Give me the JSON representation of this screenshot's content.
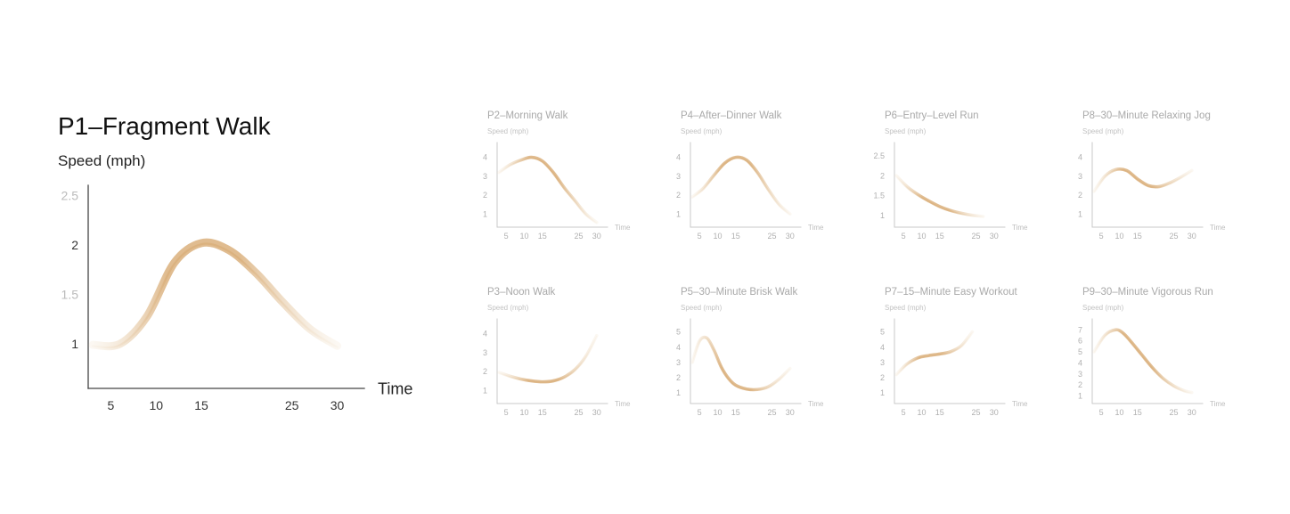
{
  "colors": {
    "curve_light": "#f3e6d3",
    "curve_dark": "#d8ab74"
  },
  "chart_data": [
    {
      "id": "p1",
      "type": "line",
      "title": "P1–Fragment Walk",
      "ylabel": "Speed (mph)",
      "xlabel": "Time",
      "xticks": [
        5,
        10,
        15,
        25,
        30
      ],
      "yticks": [
        1,
        1.5,
        2,
        2.5
      ],
      "xlim": [
        2.5,
        33
      ],
      "ylim": [
        0.55,
        2.55
      ],
      "series": [
        {
          "x": [
            3,
            6,
            9,
            12,
            15,
            18,
            21,
            24,
            27,
            30
          ],
          "y": [
            0.99,
            1.0,
            1.28,
            1.82,
            2.02,
            1.95,
            1.72,
            1.42,
            1.15,
            0.98
          ]
        }
      ]
    },
    {
      "id": "p2",
      "type": "line",
      "title": "P2–Morning Walk",
      "ylabel": "Speed (mph)",
      "xlabel": "Time",
      "xticks": [
        5,
        10,
        15,
        25,
        30
      ],
      "yticks": [
        1,
        2,
        3,
        4
      ],
      "xlim": [
        2.5,
        33
      ],
      "ylim": [
        0.3,
        4.5
      ],
      "series": [
        {
          "x": [
            3,
            6,
            9,
            12,
            15,
            18,
            21,
            24,
            27,
            30
          ],
          "y": [
            3.2,
            3.6,
            3.85,
            4.0,
            3.8,
            3.2,
            2.4,
            1.7,
            1.0,
            0.55
          ]
        }
      ]
    },
    {
      "id": "p4",
      "type": "line",
      "title": "P4–After–Dinner Walk",
      "ylabel": "Speed (mph)",
      "xlabel": "Time",
      "xticks": [
        5,
        10,
        15,
        25,
        30
      ],
      "yticks": [
        1,
        2,
        3,
        4
      ],
      "xlim": [
        2.5,
        33
      ],
      "ylim": [
        0.3,
        4.5
      ],
      "series": [
        {
          "x": [
            3,
            6,
            9,
            12,
            15,
            18,
            21,
            24,
            27,
            30
          ],
          "y": [
            1.9,
            2.35,
            3.05,
            3.7,
            4.0,
            3.85,
            3.2,
            2.3,
            1.5,
            1.0
          ]
        }
      ]
    },
    {
      "id": "p6",
      "type": "line",
      "title": "P6–Entry–Level Run",
      "ylabel": "Speed (mph)",
      "xlabel": "Time",
      "xticks": [
        5,
        10,
        15,
        25,
        30
      ],
      "yticks": [
        1,
        1.5,
        2,
        2.5
      ],
      "xlim": [
        2.5,
        33
      ],
      "ylim": [
        0.7,
        2.7
      ],
      "series": [
        {
          "x": [
            3,
            6,
            9,
            12,
            15,
            18,
            21,
            24,
            27
          ],
          "y": [
            2.0,
            1.72,
            1.52,
            1.36,
            1.22,
            1.12,
            1.05,
            1.0,
            0.97
          ]
        }
      ]
    },
    {
      "id": "p8",
      "type": "line",
      "title": "P8–30–Minute Relaxing Jog",
      "ylabel": "Speed (mph)",
      "xlabel": "Time",
      "xticks": [
        5,
        10,
        15,
        25,
        30
      ],
      "yticks": [
        1,
        2,
        3,
        4
      ],
      "xlim": [
        2.5,
        33
      ],
      "ylim": [
        0.3,
        4.5
      ],
      "series": [
        {
          "x": [
            3,
            6,
            9,
            12,
            15,
            18,
            21,
            24,
            27,
            30
          ],
          "y": [
            2.2,
            3.0,
            3.35,
            3.3,
            2.85,
            2.5,
            2.45,
            2.65,
            2.95,
            3.3
          ]
        }
      ]
    },
    {
      "id": "p3",
      "type": "line",
      "title": "P3–Noon Walk",
      "ylabel": "Speed (mph)",
      "xlabel": "Time",
      "xticks": [
        5,
        10,
        15,
        25,
        30
      ],
      "yticks": [
        1,
        2,
        3,
        4
      ],
      "xlim": [
        2.5,
        33
      ],
      "ylim": [
        0.3,
        4.5
      ],
      "series": [
        {
          "x": [
            3,
            6,
            9,
            12,
            15,
            18,
            21,
            24,
            27,
            30
          ],
          "y": [
            1.95,
            1.75,
            1.6,
            1.5,
            1.45,
            1.5,
            1.7,
            2.1,
            2.8,
            3.9
          ]
        }
      ]
    },
    {
      "id": "p5",
      "type": "line",
      "title": "P5–30–Minute Brisk Walk",
      "ylabel": "Speed (mph)",
      "xlabel": "Time",
      "xticks": [
        5,
        10,
        15,
        25,
        30
      ],
      "yticks": [
        1,
        2,
        3,
        4,
        5
      ],
      "xlim": [
        2.5,
        33
      ],
      "ylim": [
        0.3,
        5.5
      ],
      "series": [
        {
          "x": [
            3,
            5,
            7,
            9,
            11,
            13,
            15,
            18,
            21,
            24,
            27,
            30
          ],
          "y": [
            3.0,
            4.4,
            4.6,
            3.8,
            2.7,
            1.95,
            1.5,
            1.25,
            1.22,
            1.4,
            1.9,
            2.6
          ]
        }
      ]
    },
    {
      "id": "p7",
      "type": "line",
      "title": "P7–15–Minute Easy Workout",
      "ylabel": "Speed (mph)",
      "xlabel": "Time",
      "xticks": [
        5,
        10,
        15,
        25,
        30
      ],
      "yticks": [
        1,
        2,
        3,
        4,
        5
      ],
      "xlim": [
        2.5,
        33
      ],
      "ylim": [
        0.3,
        5.5
      ],
      "series": [
        {
          "x": [
            3,
            6,
            9,
            12,
            15,
            18,
            21,
            24
          ],
          "y": [
            2.2,
            2.9,
            3.3,
            3.45,
            3.55,
            3.7,
            4.1,
            5.0
          ]
        }
      ]
    },
    {
      "id": "p9",
      "type": "line",
      "title": "P9–30–Minute Vigorous Run",
      "ylabel": "Speed (mph)",
      "xlabel": "Time",
      "xticks": [
        5,
        10,
        15,
        25,
        30
      ],
      "yticks": [
        1,
        2,
        3,
        4,
        5,
        6,
        7
      ],
      "xlim": [
        2.5,
        33
      ],
      "ylim": [
        0.3,
        7.5
      ],
      "series": [
        {
          "x": [
            3,
            6,
            9,
            11,
            13,
            16,
            19,
            22,
            25,
            28,
            30
          ],
          "y": [
            5.0,
            6.5,
            7.0,
            6.7,
            6.0,
            4.8,
            3.6,
            2.6,
            1.9,
            1.45,
            1.3
          ]
        }
      ]
    }
  ]
}
